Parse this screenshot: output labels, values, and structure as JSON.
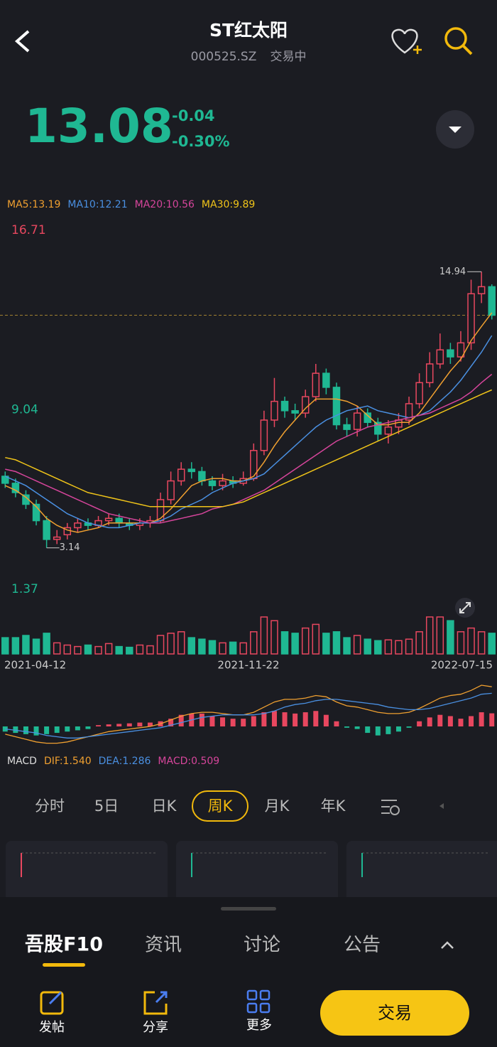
{
  "header": {
    "title": "ST红太阳",
    "code": "000525.SZ",
    "status": "交易中"
  },
  "quote": {
    "price": 13.08,
    "change": "-0.04",
    "change_pct": "-0.30%"
  },
  "ma_legend": [
    "MA5:13.19",
    "MA10:12.21",
    "MA20:10.56",
    "MA30:9.89"
  ],
  "chart": {
    "type": "candlestick",
    "ylim": [
      1.37,
      16.71
    ],
    "yticks": [
      16.71,
      9.04,
      1.37
    ],
    "dates": [
      "2021-04-12",
      "2021-11-22",
      "2022-07-15"
    ],
    "open": [
      6.2,
      5.9,
      5.4,
      5.0,
      4.3,
      3.5,
      3.7,
      4.0,
      4.2,
      4.1,
      4.3,
      4.4,
      4.2,
      4.1,
      4.2,
      4.3,
      5.2,
      6.0,
      6.5,
      6.4,
      6.0,
      5.8,
      6.0,
      5.9,
      6.1,
      7.3,
      8.6,
      9.4,
      9.0,
      8.9,
      9.6,
      10.6,
      10.0,
      8.4,
      8.2,
      8.9,
      8.5,
      8.0,
      8.3,
      8.6,
      9.3,
      10.2,
      11.0,
      11.6,
      11.3,
      11.9,
      14.0,
      14.3
    ],
    "close": [
      5.9,
      5.5,
      5.0,
      4.3,
      3.5,
      3.6,
      4.0,
      4.2,
      4.1,
      4.3,
      4.4,
      4.2,
      4.1,
      4.2,
      4.3,
      5.2,
      6.0,
      6.5,
      6.4,
      6.0,
      5.8,
      6.0,
      5.9,
      6.1,
      7.3,
      8.6,
      9.4,
      9.0,
      8.9,
      9.6,
      10.6,
      10.0,
      8.4,
      8.2,
      8.9,
      8.5,
      8.0,
      8.3,
      8.6,
      9.3,
      10.2,
      11.0,
      11.6,
      11.3,
      11.9,
      14.0,
      14.3,
      13.08
    ],
    "high": [
      6.4,
      6.1,
      5.6,
      5.2,
      4.5,
      3.9,
      4.2,
      4.4,
      4.4,
      4.5,
      4.6,
      4.6,
      4.4,
      4.4,
      4.5,
      5.5,
      6.4,
      6.8,
      6.8,
      6.6,
      6.2,
      6.3,
      6.2,
      6.4,
      7.6,
      9.0,
      10.4,
      9.6,
      9.3,
      9.9,
      11.0,
      10.8,
      10.2,
      8.7,
      9.2,
      9.1,
      8.7,
      8.6,
      8.9,
      9.6,
      10.6,
      11.5,
      12.3,
      11.9,
      12.4,
      14.6,
      14.94,
      14.4
    ],
    "low": [
      5.7,
      5.3,
      4.8,
      4.1,
      3.14,
      3.3,
      3.5,
      3.8,
      3.9,
      4.0,
      4.1,
      4.0,
      3.9,
      3.9,
      4.0,
      4.2,
      5.0,
      5.8,
      6.1,
      5.8,
      5.6,
      5.6,
      5.7,
      5.8,
      6.0,
      7.1,
      8.3,
      8.7,
      8.6,
      8.7,
      9.4,
      9.7,
      8.2,
      7.9,
      7.9,
      8.3,
      7.7,
      7.6,
      8.0,
      8.4,
      9.1,
      10.0,
      10.8,
      11.0,
      11.1,
      11.6,
      13.6,
      12.9
    ],
    "ma": [
      {
        "name": "MA5",
        "color": "#f0a030",
        "values": [
          5.8,
          5.6,
          5.3,
          4.9,
          4.4,
          4.1,
          3.9,
          3.8,
          3.9,
          4.0,
          4.2,
          4.2,
          4.2,
          4.2,
          4.2,
          4.4,
          4.8,
          5.3,
          5.8,
          6.0,
          6.1,
          6.1,
          6.0,
          6.0,
          6.2,
          6.8,
          7.5,
          8.1,
          8.6,
          9.1,
          9.5,
          9.5,
          9.5,
          9.4,
          9.2,
          8.8,
          8.4,
          8.4,
          8.5,
          8.5,
          8.9,
          9.5,
          10.1,
          10.7,
          11.2,
          12.0,
          12.6,
          13.19
        ]
      },
      {
        "name": "MA10",
        "color": "#4a90e2",
        "values": [
          6.2,
          6.0,
          5.8,
          5.5,
          5.2,
          4.9,
          4.6,
          4.4,
          4.2,
          4.1,
          4.0,
          4.0,
          4.1,
          4.2,
          4.2,
          4.3,
          4.5,
          4.8,
          5.0,
          5.2,
          5.5,
          5.7,
          5.9,
          6.0,
          6.1,
          6.3,
          6.7,
          7.1,
          7.5,
          7.9,
          8.3,
          8.6,
          8.8,
          9.0,
          9.1,
          9.2,
          9.0,
          8.9,
          8.8,
          8.7,
          8.8,
          9.0,
          9.4,
          9.8,
          10.3,
          10.9,
          11.5,
          12.21
        ]
      },
      {
        "name": "MA20",
        "color": "#d6459b",
        "values": [
          6.5,
          6.4,
          6.2,
          6.0,
          5.8,
          5.6,
          5.4,
          5.2,
          5.0,
          4.8,
          4.6,
          4.5,
          4.4,
          4.3,
          4.2,
          4.2,
          4.3,
          4.4,
          4.5,
          4.6,
          4.8,
          4.9,
          5.0,
          5.2,
          5.4,
          5.6,
          5.9,
          6.2,
          6.5,
          6.8,
          7.1,
          7.4,
          7.7,
          7.9,
          8.1,
          8.3,
          8.4,
          8.5,
          8.6,
          8.7,
          8.8,
          8.9,
          9.1,
          9.3,
          9.5,
          9.8,
          10.2,
          10.56
        ]
      },
      {
        "name": "MA30",
        "color": "#f0c419",
        "values": [
          7.0,
          6.9,
          6.7,
          6.5,
          6.3,
          6.1,
          5.9,
          5.7,
          5.5,
          5.4,
          5.3,
          5.2,
          5.1,
          5.0,
          4.9,
          4.9,
          4.9,
          4.9,
          4.9,
          4.9,
          4.9,
          4.9,
          5.0,
          5.1,
          5.3,
          5.5,
          5.7,
          5.9,
          6.1,
          6.3,
          6.5,
          6.7,
          6.9,
          7.1,
          7.3,
          7.5,
          7.7,
          7.9,
          8.1,
          8.3,
          8.5,
          8.7,
          8.9,
          9.1,
          9.3,
          9.5,
          9.7,
          9.89
        ]
      }
    ],
    "volume": [
      22,
      22,
      25,
      20,
      28,
      15,
      12,
      10,
      12,
      10,
      14,
      10,
      9,
      12,
      11,
      25,
      28,
      30,
      22,
      20,
      18,
      15,
      16,
      15,
      30,
      50,
      45,
      30,
      28,
      35,
      40,
      28,
      30,
      22,
      25,
      20,
      18,
      19,
      18,
      20,
      30,
      50,
      50,
      45,
      30,
      35,
      30,
      28
    ],
    "macd": {
      "label": "MACD",
      "dif_label": "DIF:1.540",
      "dea_label": "DEA:1.286",
      "macd_label": "MACD:0.509",
      "dif": [
        -0.3,
        -0.4,
        -0.5,
        -0.6,
        -0.65,
        -0.65,
        -0.6,
        -0.5,
        -0.4,
        -0.3,
        -0.2,
        -0.15,
        -0.1,
        -0.05,
        0,
        0.1,
        0.25,
        0.4,
        0.5,
        0.55,
        0.55,
        0.5,
        0.45,
        0.45,
        0.55,
        0.75,
        0.95,
        1.05,
        1.05,
        1.1,
        1.2,
        1.15,
        0.95,
        0.8,
        0.75,
        0.65,
        0.55,
        0.5,
        0.5,
        0.55,
        0.7,
        0.9,
        1.1,
        1.2,
        1.25,
        1.4,
        1.6,
        1.54
      ],
      "dea": [
        -0.1,
        -0.15,
        -0.2,
        -0.25,
        -0.35,
        -0.4,
        -0.45,
        -0.45,
        -0.4,
        -0.35,
        -0.3,
        -0.25,
        -0.2,
        -0.15,
        -0.1,
        -0.05,
        0.05,
        0.15,
        0.25,
        0.35,
        0.4,
        0.45,
        0.45,
        0.45,
        0.45,
        0.5,
        0.6,
        0.75,
        0.85,
        0.9,
        1.0,
        1.05,
        1.05,
        1.0,
        0.95,
        0.9,
        0.85,
        0.75,
        0.7,
        0.65,
        0.65,
        0.7,
        0.8,
        0.9,
        1.0,
        1.1,
        1.25,
        1.286
      ],
      "hist": [
        -0.2,
        -0.25,
        -0.3,
        -0.35,
        -0.3,
        -0.25,
        -0.2,
        -0.15,
        -0.1,
        0.05,
        0.08,
        0.1,
        0.12,
        0.15,
        0.15,
        0.2,
        0.3,
        0.45,
        0.5,
        0.5,
        0.4,
        0.35,
        0.3,
        0.3,
        0.4,
        0.55,
        0.6,
        0.55,
        0.5,
        0.55,
        0.6,
        0.45,
        0.2,
        -0.05,
        -0.1,
        -0.25,
        -0.35,
        -0.3,
        -0.2,
        -0.05,
        0.2,
        0.35,
        0.45,
        0.4,
        0.3,
        0.4,
        0.55,
        0.509
      ]
    }
  },
  "periods": [
    "分时",
    "5日",
    "日K",
    "周K",
    "月K",
    "年K"
  ],
  "tabs": [
    "吾股F10",
    "资讯",
    "讨论",
    "公告"
  ],
  "actions": [
    "发帖",
    "分享",
    "更多",
    "交易"
  ]
}
